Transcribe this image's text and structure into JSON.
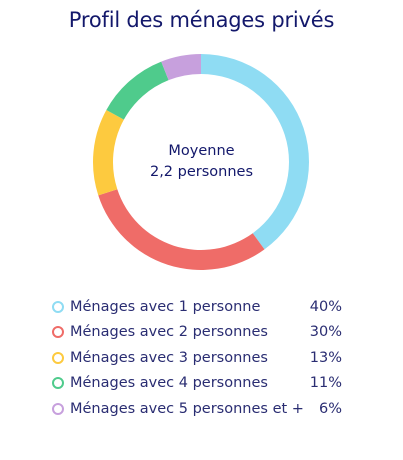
{
  "title": "Profil des ménages privés",
  "center": {
    "line1": "Moyenne",
    "line2": "2,2 personnes"
  },
  "chart_data": {
    "type": "pie",
    "title": "Profil des ménages privés",
    "categories": [
      "Ménages avec 1 personne",
      "Ménages avec 2 personnes",
      "Ménages avec 3 personnes",
      "Ménages avec 4 personnes",
      "Ménages avec 5 personnes et +"
    ],
    "values": [
      40,
      30,
      13,
      11,
      6
    ],
    "value_labels": [
      "40%",
      "30%",
      "13%",
      "11%",
      "6%"
    ],
    "colors": [
      "#8fdcf3",
      "#ef6c68",
      "#fdca3f",
      "#4fcb8c",
      "#c7a0dd"
    ],
    "legend_position": "bottom"
  }
}
